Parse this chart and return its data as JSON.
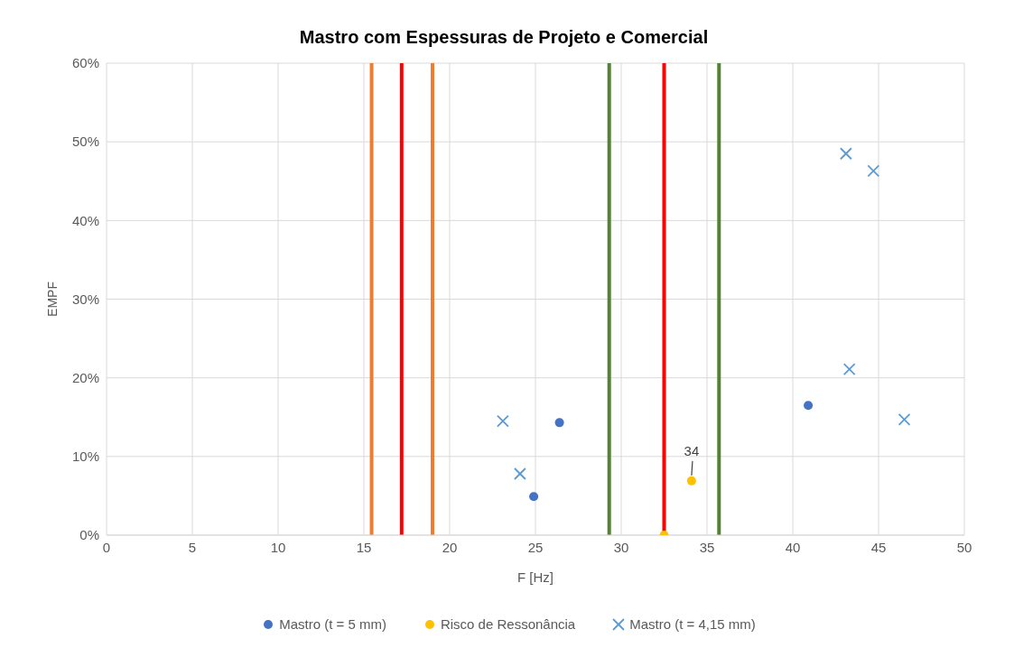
{
  "chart_data": {
    "type": "scatter",
    "title": "Mastro com Espessuras de Projeto e Comercial",
    "xlabel": "F [Hz]",
    "ylabel": "EMPF",
    "xlim": [
      0,
      50
    ],
    "xticks": [
      0,
      5,
      10,
      15,
      20,
      25,
      30,
      35,
      40,
      45,
      50
    ],
    "ylim": [
      0,
      60
    ],
    "yticks": [
      {
        "value": 0,
        "label": "0%"
      },
      {
        "value": 10,
        "label": "10%"
      },
      {
        "value": 20,
        "label": "20%"
      },
      {
        "value": 30,
        "label": "30%"
      },
      {
        "value": 40,
        "label": "40%"
      },
      {
        "value": 50,
        "label": "50%"
      },
      {
        "value": 60,
        "label": "60%"
      }
    ],
    "grid": true,
    "legend": "bottom",
    "series": [
      {
        "name": "Mastro (t = 5 mm)",
        "color": "#4472c4",
        "marker": "circle",
        "x": [
          26.4,
          24.9,
          40.9
        ],
        "values": [
          14.3,
          4.9,
          16.5
        ]
      },
      {
        "name": "Risco de Ressonância",
        "color": "#ffc000",
        "marker": "circle",
        "x": [
          32.5,
          34.1
        ],
        "values": [
          0,
          6.9
        ]
      },
      {
        "name": "Mastro (t = 4,15 mm)",
        "color": "#5b9bd5",
        "marker": "cross",
        "x": [
          23.1,
          24.1,
          43.1,
          44.7,
          43.3,
          46.5
        ],
        "values": [
          14.5,
          7.8,
          48.5,
          46.3,
          21.1,
          14.7
        ]
      }
    ],
    "ref_lines": [
      {
        "axis": "x",
        "value": 15.45,
        "color": "#ed7d31"
      },
      {
        "axis": "x",
        "value": 17.2,
        "color": "#ff0000"
      },
      {
        "axis": "x",
        "value": 19.0,
        "color": "#ed7d31"
      },
      {
        "axis": "x",
        "value": 29.3,
        "color": "#548235"
      },
      {
        "axis": "x",
        "value": 32.5,
        "color": "#ff0000"
      },
      {
        "axis": "x",
        "value": 35.7,
        "color": "#548235"
      }
    ],
    "annotations": [
      {
        "text": "34",
        "x": 34.1,
        "y": 6.9
      }
    ]
  }
}
